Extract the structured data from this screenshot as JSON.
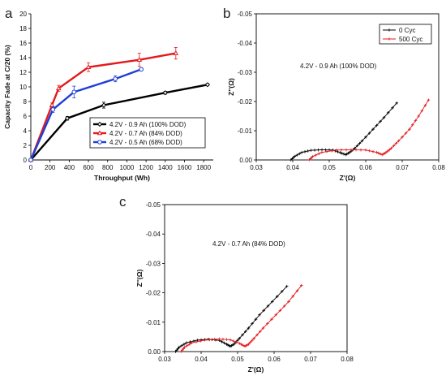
{
  "chart_data": [
    {
      "panel": "a",
      "type": "line",
      "xlabel": "Throughput (Wh)",
      "ylabel": "Capacity Fade at C/20 (%)",
      "xlim": [
        0,
        1900
      ],
      "ylim": [
        0,
        20
      ],
      "xticks": [
        0,
        200,
        400,
        600,
        800,
        1000,
        1200,
        1400,
        1600,
        1800
      ],
      "yticks": [
        0,
        2,
        4,
        6,
        8,
        10,
        12,
        14,
        16,
        18,
        20
      ],
      "legend_position": "lower-right",
      "series": [
        {
          "name": "4.2V - 0.9 Ah (100% DOD)",
          "color": "#000000",
          "x": [
            0,
            380,
            760,
            1400,
            1840
          ],
          "y": [
            0,
            5.7,
            7.5,
            9.2,
            10.3
          ],
          "err": [
            0,
            0.25,
            0.4,
            0.2,
            0.15
          ]
        },
        {
          "name": "4.2V - 0.7 Ah (84% DOD)",
          "color": "#e31a1c",
          "x": [
            0,
            220,
            290,
            600,
            1130,
            1510
          ],
          "y": [
            0,
            7.5,
            9.8,
            12.7,
            13.7,
            14.6
          ],
          "err": [
            0,
            0.3,
            0.4,
            0.6,
            0.9,
            0.8
          ]
        },
        {
          "name": "4.2V - 0.5 Ah (68% DOD)",
          "color": "#1f3fd6",
          "x": [
            0,
            230,
            450,
            880,
            1150
          ],
          "y": [
            0,
            6.9,
            9.3,
            11.1,
            12.4
          ],
          "err": [
            0,
            0.4,
            0.8,
            0.4,
            0.2
          ]
        }
      ]
    },
    {
      "panel": "b",
      "type": "line",
      "xlabel": "Z'(Ω)",
      "ylabel": "Z''(Ω)",
      "xlim": [
        0.03,
        0.08
      ],
      "ylim": [
        -0.05,
        0
      ],
      "y_inverted": true,
      "xticks": [
        0.03,
        0.04,
        0.05,
        0.06,
        0.07,
        0.08
      ],
      "xtick_labels": [
        "0.03",
        "0.04",
        "0.05",
        "0.06",
        "0.07",
        "0.08"
      ],
      "yticks": [
        0,
        -0.01,
        -0.02,
        -0.03,
        -0.04,
        -0.05
      ],
      "ytick_labels": [
        "0.00",
        "-0.01",
        "-0.02",
        "-0.03",
        "-0.04",
        "-0.05"
      ],
      "annotation": "4.2V - 0.9 Ah (100% DOD)",
      "legend_position": "top-right",
      "series": [
        {
          "name": "0  Cyc",
          "color": "#000000",
          "x": [
            0.0395,
            0.0405,
            0.0425,
            0.045,
            0.048,
            0.051,
            0.053,
            0.0545,
            0.0555,
            0.057,
            0.059,
            0.062,
            0.065,
            0.0685
          ],
          "y": [
            0.0,
            -0.0012,
            -0.0026,
            -0.0033,
            -0.0035,
            -0.0034,
            -0.0025,
            -0.0018,
            -0.0025,
            -0.004,
            -0.0065,
            -0.0105,
            -0.0145,
            -0.0195
          ]
        },
        {
          "name": "500 Cyc",
          "color": "#e31a1c",
          "x": [
            0.0445,
            0.0455,
            0.048,
            0.052,
            0.056,
            0.06,
            0.063,
            0.0645,
            0.0655,
            0.067,
            0.069,
            0.072,
            0.0745,
            0.0772
          ],
          "y": [
            0.0,
            -0.0012,
            -0.0026,
            -0.0034,
            -0.0035,
            -0.0034,
            -0.0026,
            -0.0018,
            -0.0025,
            -0.004,
            -0.0065,
            -0.0105,
            -0.015,
            -0.0205
          ]
        }
      ]
    },
    {
      "panel": "c",
      "type": "line",
      "xlabel": "Z'(Ω)",
      "ylabel": "Z''(Ω)",
      "xlim": [
        0.03,
        0.08
      ],
      "ylim": [
        -0.05,
        0
      ],
      "y_inverted": true,
      "xticks": [
        0.03,
        0.04,
        0.05,
        0.06,
        0.07,
        0.08
      ],
      "xtick_labels": [
        "0.03",
        "0.04",
        "0.05",
        "0.06",
        "0.07",
        "0.08"
      ],
      "yticks": [
        0,
        -0.01,
        -0.02,
        -0.03,
        -0.04,
        -0.05
      ],
      "ytick_labels": [
        "0.00",
        "-0.01",
        "-0.02",
        "-0.03",
        "-0.04",
        "-0.05"
      ],
      "annotation": "4.2V - 0.7 Ah (84% DOD)",
      "series": [
        {
          "name": "0  Cyc",
          "color": "#000000",
          "x": [
            0.033,
            0.034,
            0.036,
            0.039,
            0.042,
            0.045,
            0.047,
            0.048,
            0.049,
            0.0505,
            0.053,
            0.056,
            0.0595,
            0.0635
          ],
          "y": [
            0.0,
            -0.0015,
            -0.003,
            -0.0039,
            -0.0042,
            -0.0038,
            -0.0025,
            -0.0018,
            -0.0025,
            -0.0045,
            -0.008,
            -0.0125,
            -0.017,
            -0.0222
          ]
        },
        {
          "name": "500 Cyc",
          "color": "#e31a1c",
          "x": [
            0.0345,
            0.0355,
            0.0375,
            0.041,
            0.045,
            0.048,
            0.0505,
            0.052,
            0.053,
            0.0545,
            0.057,
            0.0605,
            0.064,
            0.0675
          ],
          "y": [
            0.0,
            -0.0015,
            -0.003,
            -0.0039,
            -0.0043,
            -0.004,
            -0.0028,
            -0.0018,
            -0.0025,
            -0.0045,
            -0.008,
            -0.0125,
            -0.017,
            -0.0225
          ]
        }
      ]
    }
  ]
}
